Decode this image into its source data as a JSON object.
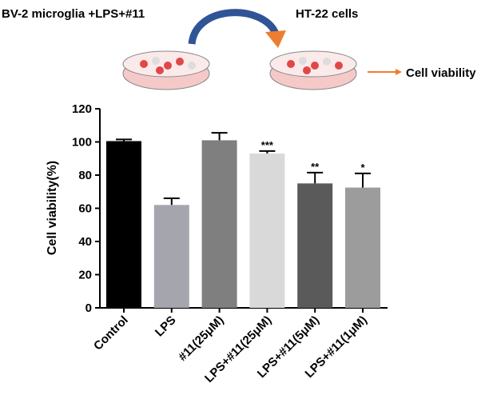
{
  "diagram": {
    "source_label": "BV-2 microglia +LPS+#11",
    "target_label": "HT-22 cells",
    "output_label": "Cell viability"
  },
  "chart_data": {
    "type": "bar",
    "y_label": "Cell viability(%)",
    "categories": [
      "Control",
      "LPS",
      "#11(25μM)",
      "LPS+#11(25μM)",
      "LPS+#11(5μM)",
      "LPS+#11(1μM)"
    ],
    "values": [
      100.5,
      62,
      101,
      93,
      75,
      72.5
    ],
    "errors": [
      1,
      4,
      4.5,
      1.5,
      6.5,
      8.5
    ],
    "significance": [
      null,
      null,
      null,
      "***",
      "**",
      "*"
    ],
    "colors": [
      "#000000",
      "#a5a5ad",
      "#7f7f7f",
      "#d9d9d9",
      "#5a5a5a",
      "#9c9c9c"
    ],
    "ylim": [
      0,
      120
    ],
    "yticks": [
      0,
      20,
      40,
      60,
      80,
      100,
      120
    ],
    "grid": false
  }
}
